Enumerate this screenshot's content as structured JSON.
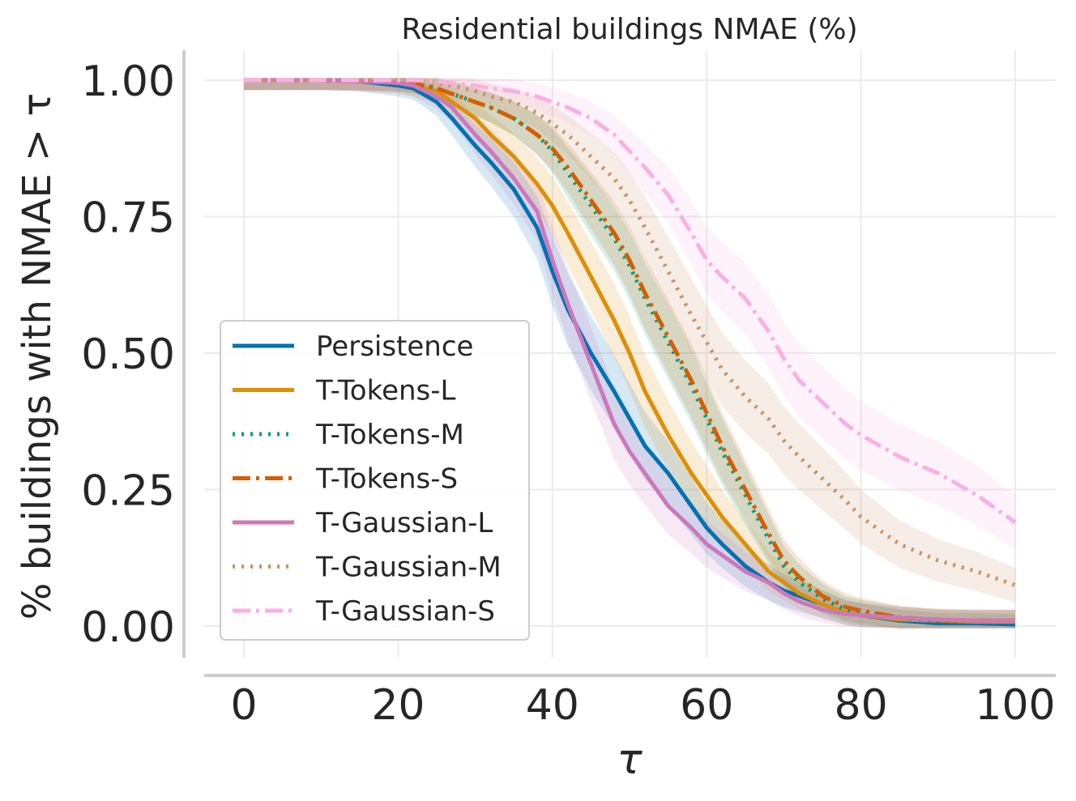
{
  "chart_data": {
    "type": "line",
    "title": "Residential buildings NMAE (%)",
    "xlabel": "τ",
    "ylabel": "% buildings with NMAE  > τ",
    "xlim": [
      0,
      100
    ],
    "ylim": [
      0,
      1
    ],
    "x_ticks": [
      "0",
      "20",
      "40",
      "60",
      "80",
      "100"
    ],
    "y_ticks": [
      "0.00",
      "0.25",
      "0.50",
      "0.75",
      "1.00"
    ],
    "grid": true,
    "legend_position": "lower-left",
    "x": [
      0,
      5,
      10,
      15,
      20,
      22,
      25,
      27,
      30,
      32,
      35,
      38,
      40,
      42,
      45,
      48,
      50,
      52,
      55,
      58,
      60,
      62,
      65,
      68,
      70,
      72,
      75,
      78,
      80,
      85,
      90,
      95,
      100
    ],
    "series": [
      {
        "name": "Persistence",
        "color": "#0072b2",
        "dash": "solid",
        "values": [
          1.0,
          1.0,
          1.0,
          0.998,
          0.99,
          0.985,
          0.96,
          0.93,
          0.88,
          0.85,
          0.8,
          0.73,
          0.65,
          0.58,
          0.5,
          0.43,
          0.38,
          0.33,
          0.28,
          0.22,
          0.18,
          0.15,
          0.11,
          0.08,
          0.065,
          0.055,
          0.04,
          0.025,
          0.02,
          0.01,
          0.005,
          0.005,
          0.003
        ]
      },
      {
        "name": "T-Tokens-L",
        "color": "#de8f05",
        "dash": "solid",
        "values": [
          1.0,
          1.0,
          1.0,
          0.998,
          0.995,
          0.99,
          0.98,
          0.96,
          0.93,
          0.9,
          0.86,
          0.81,
          0.77,
          0.72,
          0.64,
          0.56,
          0.5,
          0.43,
          0.35,
          0.28,
          0.24,
          0.2,
          0.15,
          0.1,
          0.08,
          0.06,
          0.04,
          0.025,
          0.02,
          0.012,
          0.01,
          0.008,
          0.008
        ]
      },
      {
        "name": "T-Tokens-M",
        "color": "#029e73",
        "dash": "dotted",
        "values": [
          1.0,
          1.0,
          1.0,
          1.0,
          0.998,
          0.995,
          0.985,
          0.975,
          0.96,
          0.95,
          0.93,
          0.9,
          0.87,
          0.83,
          0.77,
          0.71,
          0.66,
          0.6,
          0.52,
          0.44,
          0.38,
          0.32,
          0.24,
          0.16,
          0.11,
          0.08,
          0.05,
          0.03,
          0.025,
          0.015,
          0.01,
          0.01,
          0.01
        ]
      },
      {
        "name": "T-Tokens-S",
        "color": "#d55e00",
        "dash": "dashdot",
        "values": [
          1.0,
          1.0,
          1.0,
          1.0,
          0.998,
          0.995,
          0.985,
          0.975,
          0.96,
          0.95,
          0.93,
          0.9,
          0.875,
          0.84,
          0.78,
          0.72,
          0.67,
          0.61,
          0.53,
          0.45,
          0.39,
          0.33,
          0.25,
          0.17,
          0.12,
          0.09,
          0.055,
          0.035,
          0.028,
          0.016,
          0.011,
          0.01,
          0.01
        ]
      },
      {
        "name": "T-Gaussian-L",
        "color": "#cc78bc",
        "dash": "solid",
        "values": [
          1.0,
          1.0,
          1.0,
          0.998,
          0.995,
          0.99,
          0.97,
          0.95,
          0.9,
          0.87,
          0.82,
          0.76,
          0.67,
          0.59,
          0.48,
          0.37,
          0.32,
          0.28,
          0.22,
          0.18,
          0.15,
          0.13,
          0.1,
          0.08,
          0.06,
          0.045,
          0.03,
          0.022,
          0.02,
          0.015,
          0.012,
          0.01,
          0.01
        ]
      },
      {
        "name": "T-Gaussian-M",
        "color": "#ca9161",
        "dash": "dotted",
        "values": [
          1.0,
          1.0,
          1.0,
          1.0,
          1.0,
          0.998,
          0.995,
          0.99,
          0.98,
          0.97,
          0.96,
          0.94,
          0.92,
          0.9,
          0.86,
          0.82,
          0.78,
          0.73,
          0.65,
          0.57,
          0.52,
          0.47,
          0.42,
          0.38,
          0.34,
          0.31,
          0.27,
          0.23,
          0.2,
          0.15,
          0.12,
          0.1,
          0.075
        ]
      },
      {
        "name": "T-Gaussian-S",
        "color": "#fbafe4",
        "dash": "dashdot",
        "values": [
          1.0,
          1.0,
          1.0,
          1.0,
          1.0,
          1.0,
          0.998,
          0.995,
          0.99,
          0.985,
          0.98,
          0.97,
          0.96,
          0.95,
          0.93,
          0.9,
          0.87,
          0.84,
          0.79,
          0.72,
          0.67,
          0.64,
          0.6,
          0.54,
          0.49,
          0.45,
          0.41,
          0.37,
          0.35,
          0.31,
          0.28,
          0.24,
          0.19
        ]
      }
    ]
  }
}
